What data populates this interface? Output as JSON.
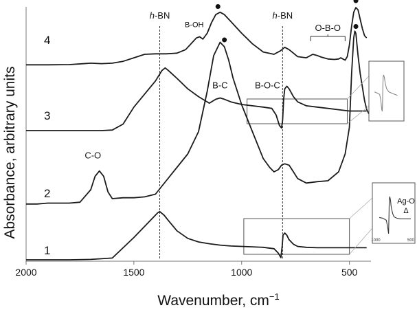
{
  "chart_data": {
    "type": "line",
    "xlabel": "Wavenumber, cm",
    "xlabel_sup": "−1",
    "ylabel": "Absorbance, arbitrary units",
    "xlim": [
      2000,
      400
    ],
    "x_reversed": true,
    "x_ticks": [
      2000,
      1500,
      1000,
      500
    ],
    "y_ticks": false,
    "grid": false,
    "legend": "none",
    "line_color": "#1a1a1a",
    "reference_lines": [
      {
        "x": 1380,
        "label_italic": "h",
        "label_rest": "-BN"
      },
      {
        "x": 810,
        "label_italic": "h",
        "label_rest": "-BN"
      }
    ],
    "series": [
      {
        "label": "1",
        "x": [
          2000,
          1900,
          1800,
          1700,
          1600,
          1500,
          1450,
          1420,
          1390,
          1380,
          1360,
          1340,
          1300,
          1250,
          1200,
          1150,
          1100,
          1050,
          1000,
          950,
          900,
          850,
          830,
          818,
          812,
          808,
          800,
          790,
          780,
          760,
          740,
          700,
          650,
          600,
          550,
          500,
          470,
          440,
          420
        ],
        "y": [
          0.0,
          0.0,
          0.0,
          0.01,
          0.04,
          0.5,
          0.75,
          0.9,
          1.05,
          1.08,
          1.0,
          0.88,
          0.65,
          0.48,
          0.4,
          0.36,
          0.33,
          0.31,
          0.3,
          0.29,
          0.28,
          0.25,
          0.15,
          0.05,
          0.3,
          0.55,
          0.6,
          0.55,
          0.45,
          0.35,
          0.3,
          0.28,
          0.27,
          0.27,
          0.27,
          0.27,
          0.27,
          0.27,
          0.27
        ]
      },
      {
        "label": "2",
        "x": [
          2000,
          1950,
          1900,
          1800,
          1750,
          1700,
          1680,
          1660,
          1640,
          1620,
          1600,
          1550,
          1500,
          1450,
          1400,
          1350,
          1300,
          1250,
          1200,
          1160,
          1130,
          1100,
          1080,
          1060,
          1040,
          1000,
          950,
          900,
          870,
          850,
          830,
          815,
          800,
          780,
          760,
          740,
          700,
          650,
          600,
          550,
          520,
          500,
          490,
          480,
          475,
          470,
          460,
          450,
          440,
          430,
          420,
          410
        ],
        "y": [
          0.08,
          0.08,
          0.1,
          0.1,
          0.12,
          0.4,
          0.7,
          0.82,
          0.7,
          0.35,
          0.2,
          0.22,
          0.22,
          0.24,
          0.3,
          0.6,
          0.9,
          1.2,
          1.7,
          2.6,
          3.4,
          3.7,
          3.6,
          3.3,
          2.9,
          2.3,
          1.7,
          1.1,
          0.9,
          0.8,
          0.85,
          0.95,
          0.98,
          0.95,
          0.8,
          0.65,
          0.55,
          0.58,
          0.6,
          0.8,
          1.2,
          1.8,
          3.0,
          3.8,
          3.95,
          3.9,
          3.4,
          3.0,
          2.7,
          2.4,
          2.2,
          2.1
        ]
      },
      {
        "label": "3",
        "x": [
          2000,
          1800,
          1700,
          1650,
          1600,
          1550,
          1500,
          1450,
          1400,
          1370,
          1355,
          1340,
          1300,
          1250,
          1200,
          1150,
          1120,
          1100,
          1080,
          1050,
          1000,
          950,
          900,
          860,
          840,
          825,
          815,
          810,
          805,
          800,
          790,
          780,
          760,
          740,
          700,
          650,
          600,
          550,
          500,
          470,
          450,
          430,
          420
        ],
        "y": [
          0.0,
          0.0,
          0.0,
          0.0,
          0.02,
          0.25,
          0.9,
          1.4,
          1.9,
          2.3,
          2.4,
          2.3,
          2.0,
          1.6,
          1.3,
          1.05,
          1.2,
          1.25,
          1.2,
          1.1,
          1.0,
          0.95,
          0.9,
          0.85,
          0.6,
          0.2,
          0.1,
          0.4,
          1.2,
          1.6,
          1.7,
          1.6,
          1.3,
          1.1,
          0.95,
          0.9,
          0.85,
          0.8,
          0.75,
          0.75,
          0.75,
          0.75,
          0.75
        ]
      },
      {
        "label": "4",
        "x": [
          2000,
          1900,
          1800,
          1700,
          1650,
          1600,
          1550,
          1500,
          1450,
          1400,
          1350,
          1300,
          1260,
          1230,
          1210,
          1195,
          1180,
          1160,
          1140,
          1120,
          1100,
          1080,
          1050,
          1000,
          950,
          900,
          850,
          820,
          800,
          780,
          760,
          740,
          700,
          670,
          650,
          630,
          600,
          570,
          550,
          540,
          530,
          520,
          510,
          500,
          490,
          480,
          470,
          460,
          450,
          440,
          430,
          420
        ],
        "y": [
          0.05,
          0.05,
          0.06,
          0.12,
          0.1,
          0.12,
          0.2,
          0.35,
          0.5,
          0.52,
          0.52,
          0.55,
          0.7,
          1.0,
          1.2,
          1.25,
          1.15,
          1.4,
          1.85,
          2.2,
          2.3,
          2.2,
          1.9,
          1.4,
          0.95,
          0.6,
          0.5,
          0.65,
          0.8,
          0.7,
          0.55,
          0.4,
          0.35,
          0.5,
          0.45,
          0.38,
          0.3,
          0.28,
          0.3,
          0.35,
          0.3,
          0.25,
          0.4,
          0.9,
          1.7,
          2.3,
          2.5,
          2.4,
          2.0,
          1.6,
          1.3,
          1.2
        ]
      }
    ],
    "annotations": [
      {
        "text": "B-OH",
        "x": 1220
      },
      {
        "text": "B-C",
        "x": 1100
      },
      {
        "text": "B-O-C",
        "x": 880
      },
      {
        "text": "O-B-O",
        "x": 600
      },
      {
        "text": "C-O",
        "x": 1690
      }
    ],
    "markers": [
      {
        "series": "4",
        "x": 1110
      },
      {
        "series": "4",
        "x": 470
      },
      {
        "series": "2",
        "x": 1080
      },
      {
        "series": "2",
        "x": 470
      }
    ],
    "insets": [
      {
        "of_series": "3",
        "x_range": [
          975,
          510
        ]
      },
      {
        "of_series": "1",
        "x_range": [
          990,
          500
        ],
        "ticks": [
          "1000",
          "500"
        ],
        "texts": [
          "Ag-O",
          "Δ"
        ]
      }
    ]
  }
}
